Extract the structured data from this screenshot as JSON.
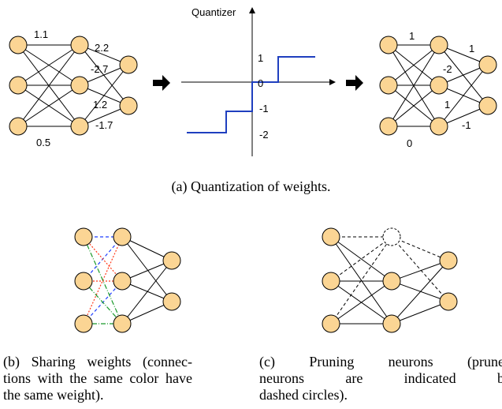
{
  "panel_a": {
    "input_weights": {
      "w1": "1.1",
      "w2": "-2.7",
      "w3": "1.2",
      "w4": "0.5",
      "w5": "2.2",
      "w6": "-1.7"
    },
    "quantizer": {
      "title": "Quantizer",
      "ticks": [
        "1",
        "0",
        "-1",
        "-2"
      ]
    },
    "output_weights": {
      "w1": "1",
      "w2": "-2",
      "w3": "1",
      "w4": "0",
      "w5": "1",
      "w6": "-1"
    },
    "caption": "(a) Quantization of weights."
  },
  "panel_b": {
    "caption_lines": [
      "(b) Sharing weights (connec-",
      "tions with the same color have",
      "the same weight)."
    ],
    "share_colors": {
      "blue": "#1f3fff",
      "red": "#ff3a1a",
      "green": "#1a9a2a"
    }
  },
  "panel_c": {
    "caption_lines": [
      "(c) Pruning neurons (pruned",
      "neurons are indicated by",
      "dashed circles)."
    ]
  },
  "colors": {
    "node_fill": "#fbd594",
    "node_stroke": "#000000",
    "quantizer_line": "#1f3fbf"
  }
}
